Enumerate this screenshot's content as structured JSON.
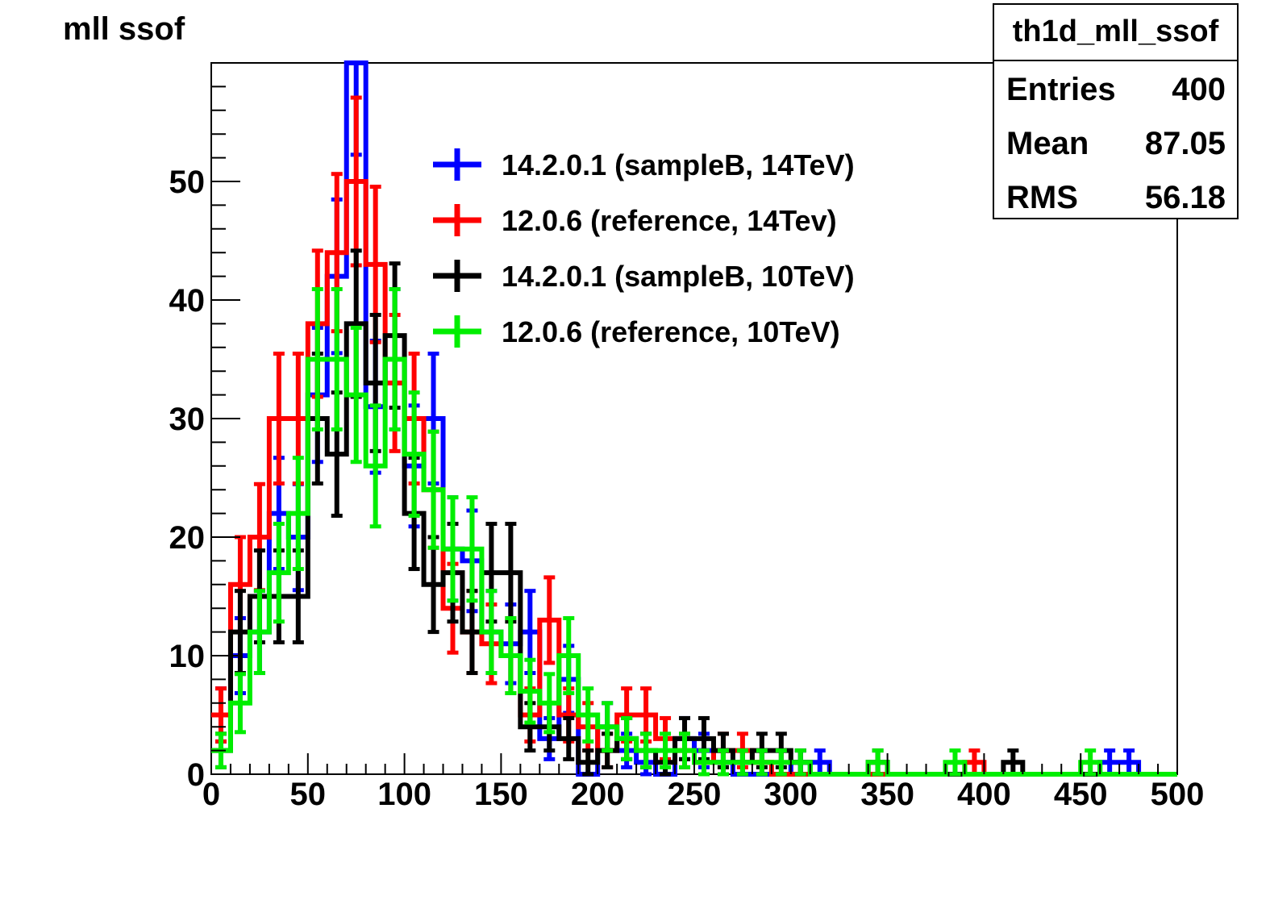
{
  "chart_data": {
    "type": "histogram",
    "title": "mll ssof",
    "xlim": [
      0,
      500
    ],
    "ylim": [
      0,
      60
    ],
    "xticks": [
      "0",
      "50",
      "100",
      "150",
      "200",
      "250",
      "300",
      "350",
      "400",
      "450",
      "500"
    ],
    "yticks": [
      "0",
      "10",
      "20",
      "30",
      "40",
      "50"
    ],
    "grid": false,
    "legend_position": "upper-center",
    "stats_box": {
      "name": "th1d_mll_ssof",
      "rows": [
        {
          "label": "Entries",
          "value": "400"
        },
        {
          "label": "Mean",
          "value": "87.05"
        },
        {
          "label": "RMS",
          "value": "56.18"
        }
      ]
    },
    "bin_edges_start": 0,
    "bin_width": 10,
    "series": [
      {
        "name": "14.2.0.1 (sampleB, 14TeV)",
        "color": "#0000ff",
        "values": [
          5,
          10,
          12,
          22,
          20,
          32,
          42,
          60,
          31,
          35,
          26,
          30,
          19,
          18,
          12,
          11,
          12,
          3,
          8,
          0,
          4,
          2,
          1,
          0,
          3,
          2,
          1,
          0,
          0,
          0,
          1,
          1,
          0,
          0,
          0,
          0,
          0,
          0,
          0,
          0,
          0,
          0,
          0,
          0,
          0,
          0,
          1,
          1,
          0,
          0
        ]
      },
      {
        "name": "12.0.6 (reference, 14Tev)",
        "color": "#ff0000",
        "values": [
          5,
          16,
          20,
          30,
          30,
          38,
          44,
          50,
          43,
          33,
          30,
          24,
          14,
          12,
          11,
          10,
          5,
          13,
          5,
          4,
          2,
          5,
          5,
          3,
          2,
          1,
          2,
          2,
          1,
          0,
          0,
          0,
          0,
          0,
          0,
          0,
          0,
          0,
          0,
          1,
          0,
          0,
          0,
          0,
          0,
          0,
          0,
          0,
          0,
          0
        ]
      },
      {
        "name": "14.2.0.1 (sampleB, 10TeV)",
        "color": "#000000",
        "values": [
          2,
          12,
          15,
          15,
          15,
          30,
          27,
          38,
          33,
          37,
          22,
          16,
          17,
          12,
          17,
          17,
          4,
          4,
          3,
          1,
          2,
          3,
          2,
          1,
          3,
          3,
          2,
          1,
          2,
          2,
          1,
          0,
          0,
          0,
          1,
          0,
          0,
          0,
          0,
          0,
          0,
          1,
          0,
          0,
          0,
          0,
          0,
          0,
          0,
          0
        ]
      },
      {
        "name": "12.0.6 (reference, 10TeV)",
        "color": "#00ee00",
        "values": [
          2,
          6,
          12,
          17,
          22,
          35,
          35,
          32,
          26,
          35,
          27,
          24,
          19,
          19,
          12,
          10,
          7,
          6,
          10,
          5,
          4,
          3,
          2,
          2,
          2,
          1,
          1,
          1,
          1,
          1,
          1,
          0,
          0,
          0,
          1,
          0,
          0,
          0,
          1,
          0,
          0,
          0,
          0,
          0,
          0,
          1,
          0,
          0,
          0,
          0
        ]
      }
    ]
  }
}
